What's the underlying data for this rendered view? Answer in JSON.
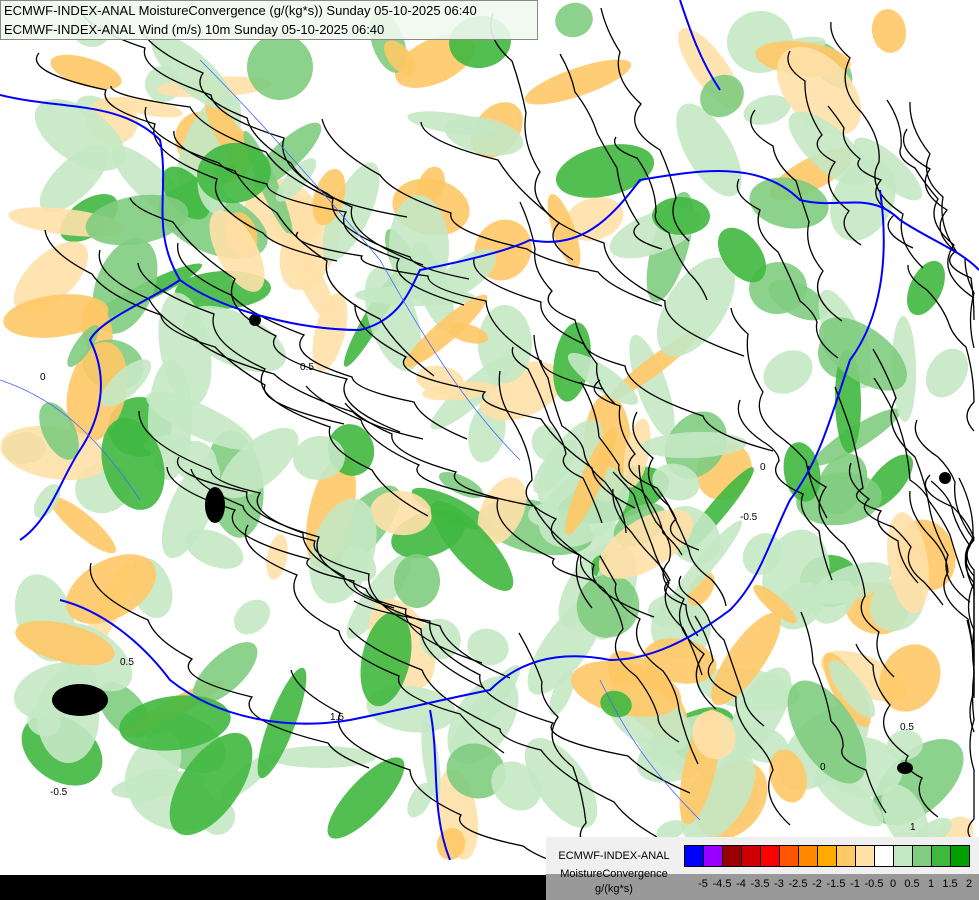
{
  "title_lines": [
    "ECMWF-INDEX-ANAL MoistureConvergence (g/(kg*s)) Sunday 05-10-2025 06:40",
    "ECMWF-INDEX-ANAL Wind (m/s) 10m Sunday 05-10-2025 06:40"
  ],
  "legend": {
    "name_line1": "ECMWF-INDEX-ANAL",
    "name_line2": "MoistureConvergence",
    "unit": "g/(kg*s)",
    "colors": [
      "#0000ff",
      "#9900ff",
      "#990000",
      "#cc0000",
      "#ff0000",
      "#ff5500",
      "#ff8800",
      "#ffaa00",
      "#ffc866",
      "#ffe0a8",
      "#ffffff",
      "#c4e8c4",
      "#80cc80",
      "#40b840",
      "#00a000"
    ],
    "labels": [
      "-5",
      "-4.5",
      "-4",
      "-3.5",
      "-3",
      "-2.5",
      "-2",
      "-1.5",
      "-1",
      "-0.5",
      "0",
      "0.5",
      "1",
      "1.5",
      "2"
    ]
  },
  "contour_labels": [
    "0",
    "0.5",
    "-0.5",
    "1.5",
    "0",
    "0.5",
    "0",
    "-0.5",
    "0.5",
    "1"
  ],
  "colors": {
    "border": "#0000ff",
    "rivers": "#4466ff",
    "streamlines": "#000000"
  }
}
